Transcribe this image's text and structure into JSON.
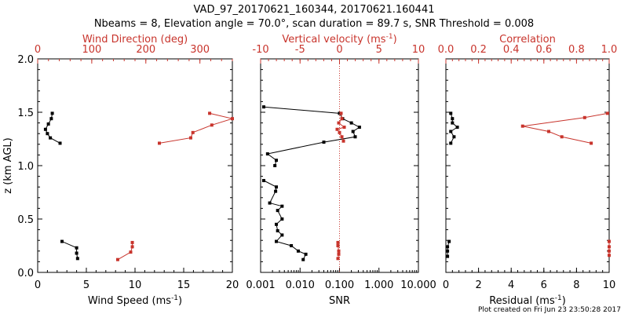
{
  "title_line1": "VAD_97_20170621_160344, 20170621.160441",
  "title_line2": "Nbeams = 8, Elevation angle = 70.0°, scan duration = 89.7 s, SNR Threshold = 0.008",
  "footer": "Plot created on Fri Jun 23 23:50:28 2017",
  "colors": {
    "primary": "#000000",
    "secondary": "#c8342c"
  },
  "chart_data": [
    {
      "type": "line",
      "ylabel": "z (km AGL)",
      "ylim": [
        0,
        2.0
      ],
      "y_ticks": [
        "0.0",
        "0.5",
        "1.0",
        "1.5",
        "2.0"
      ],
      "xlabel": "Wind Speed (ms",
      "xlabel_sup": "-1",
      "xlabel_tail": ")",
      "xlim": [
        0,
        20
      ],
      "x_ticks": [
        "0",
        "5",
        "10",
        "15",
        "20"
      ],
      "top_label": "Wind Direction (deg)",
      "top_xlim": [
        0,
        360
      ],
      "top_ticks": [
        "0",
        "100",
        "200",
        "300"
      ],
      "series": [
        {
          "axis": "bottom",
          "segments": [
            [
              [
                1.5,
                1.49
              ],
              [
                1.4,
                1.44
              ],
              [
                1.1,
                1.39
              ],
              [
                0.8,
                1.34
              ],
              [
                1.0,
                1.3
              ],
              [
                1.3,
                1.26
              ],
              [
                2.3,
                1.21
              ]
            ],
            [
              [
                2.5,
                0.29
              ],
              [
                4.0,
                0.23
              ],
              [
                4.0,
                0.18
              ],
              [
                4.1,
                0.13
              ]
            ]
          ]
        },
        {
          "axis": "top",
          "segments": [
            [
              [
                318,
                1.49
              ],
              [
                360,
                1.44
              ],
              [
                322,
                1.38
              ],
              [
                287,
                1.31
              ],
              [
                283,
                1.26
              ],
              [
                225,
                1.21
              ]
            ],
            [
              [
                175,
                0.28
              ],
              [
                175,
                0.24
              ],
              [
                172,
                0.19
              ],
              [
                148,
                0.12
              ]
            ]
          ]
        }
      ]
    },
    {
      "type": "line",
      "xscale": "log",
      "xlabel": "SNR",
      "xlim": [
        0.001,
        10
      ],
      "x_ticks": [
        "0.001",
        "0.010",
        "0.100",
        "1.000",
        "10.000"
      ],
      "top_label": "Vertical velocity (ms",
      "top_label_sup": "-1",
      "top_label_tail": ")",
      "top_xlim": [
        -10,
        10
      ],
      "top_ticks": [
        "-10",
        "-5",
        "0",
        "5",
        "10"
      ],
      "reference_line": {
        "axis": "top",
        "value": 0
      },
      "series": [
        {
          "axis": "bottom",
          "segments": [
            [
              [
                0.0012,
                1.55
              ],
              [
                0.1,
                1.49
              ],
              [
                0.12,
                1.44
              ],
              [
                0.2,
                1.4
              ],
              [
                0.32,
                1.36
              ],
              [
                0.22,
                1.32
              ],
              [
                0.25,
                1.27
              ],
              [
                0.04,
                1.22
              ],
              [
                0.0015,
                1.11
              ],
              [
                0.0025,
                1.05
              ],
              [
                0.0023,
                1.0
              ]
            ],
            [
              [
                0.0012,
                0.86
              ],
              [
                0.0025,
                0.8
              ],
              [
                0.0024,
                0.76
              ],
              [
                0.0017,
                0.65
              ],
              [
                0.0035,
                0.62
              ],
              [
                0.0027,
                0.58
              ],
              [
                0.0035,
                0.5
              ],
              [
                0.0025,
                0.45
              ],
              [
                0.0027,
                0.39
              ],
              [
                0.0035,
                0.35
              ],
              [
                0.0025,
                0.29
              ],
              [
                0.006,
                0.25
              ],
              [
                0.009,
                0.2
              ],
              [
                0.014,
                0.17
              ],
              [
                0.012,
                0.12
              ]
            ]
          ]
        },
        {
          "axis": "top",
          "segments": [
            [
              [
                0.2,
                1.49
              ],
              [
                0.3,
                1.44
              ],
              [
                -0.1,
                1.4
              ],
              [
                0.6,
                1.36
              ],
              [
                -0.3,
                1.34
              ],
              [
                0.0,
                1.31
              ],
              [
                0.3,
                1.27
              ],
              [
                0.5,
                1.23
              ]
            ],
            [
              [
                -0.2,
                0.28
              ],
              [
                -0.2,
                0.25
              ],
              [
                -0.1,
                0.2
              ],
              [
                -0.1,
                0.17
              ],
              [
                -0.2,
                0.13
              ]
            ]
          ]
        }
      ]
    },
    {
      "type": "line",
      "xlabel": "Residual (ms",
      "xlabel_sup": "-1",
      "xlabel_tail": ")",
      "xlim": [
        0,
        10
      ],
      "x_ticks": [
        "0",
        "2",
        "4",
        "6",
        "8",
        "10"
      ],
      "top_label": "Correlation",
      "top_xlim": [
        0,
        1.0
      ],
      "top_ticks": [
        "0.0",
        "0.2",
        "0.4",
        "0.6",
        "0.8",
        "1.0"
      ],
      "series": [
        {
          "axis": "bottom",
          "segments": [
            [
              [
                0.3,
                1.49
              ],
              [
                0.4,
                1.44
              ],
              [
                0.4,
                1.4
              ],
              [
                0.7,
                1.36
              ],
              [
                0.3,
                1.32
              ],
              [
                0.5,
                1.27
              ],
              [
                0.3,
                1.21
              ]
            ],
            [
              [
                0.2,
                0.29
              ],
              [
                0.1,
                0.24
              ],
              [
                0.1,
                0.2
              ],
              [
                0.1,
                0.15
              ]
            ]
          ]
        },
        {
          "axis": "top",
          "segments": [
            [
              [
                0.99,
                1.49
              ],
              [
                0.85,
                1.45
              ],
              [
                0.47,
                1.37
              ],
              [
                0.63,
                1.32
              ],
              [
                0.71,
                1.27
              ],
              [
                0.89,
                1.21
              ]
            ],
            [
              [
                1.0,
                0.29
              ],
              [
                1.0,
                0.24
              ],
              [
                1.0,
                0.2
              ],
              [
                1.0,
                0.16
              ]
            ]
          ]
        }
      ]
    }
  ]
}
